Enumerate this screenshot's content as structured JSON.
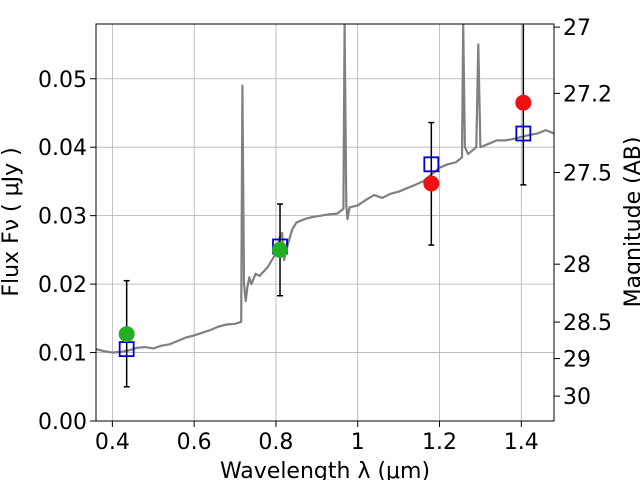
{
  "chart_data": {
    "type": "scatter",
    "xlabel": "Wavelength  λ (μm)",
    "ylabel": "Flux  Fν  ( μJy )",
    "y2label": "Magnitude (AB)",
    "xlim": [
      0.36,
      1.48
    ],
    "ylim": [
      0.0,
      0.058
    ],
    "grid": true,
    "x_ticks": [
      0.4,
      0.6,
      0.8,
      1.0,
      1.2,
      1.4
    ],
    "x_tick_labels": [
      "0.4",
      "0.6",
      "0.8",
      "1",
      "1.2",
      "1.4"
    ],
    "y_ticks": [
      0.0,
      0.01,
      0.02,
      0.03,
      0.04,
      0.05
    ],
    "y_tick_labels": [
      "0.00",
      "0.01",
      "0.02",
      "0.03",
      "0.04",
      "0.05"
    ],
    "mag_ticks": [
      27,
      27.2,
      27.5,
      28,
      28.5,
      29,
      30
    ],
    "mag_tick_labels": [
      "27",
      "27.2",
      "27.5",
      "28",
      "28.5",
      "29",
      "30"
    ],
    "series": [
      {
        "kind": "spectrum",
        "color": "#808080",
        "x": [
          0.36,
          0.38,
          0.4,
          0.42,
          0.44,
          0.46,
          0.48,
          0.5,
          0.52,
          0.54,
          0.56,
          0.58,
          0.6,
          0.62,
          0.64,
          0.66,
          0.68,
          0.7,
          0.715,
          0.718,
          0.722,
          0.726,
          0.73,
          0.735,
          0.74,
          0.75,
          0.76,
          0.78,
          0.8,
          0.81,
          0.815,
          0.82,
          0.83,
          0.84,
          0.85,
          0.87,
          0.89,
          0.91,
          0.93,
          0.95,
          0.965,
          0.968,
          0.972,
          0.975,
          0.98,
          1.0,
          1.02,
          1.04,
          1.06,
          1.08,
          1.1,
          1.12,
          1.14,
          1.16,
          1.18,
          1.2,
          1.22,
          1.24,
          1.255,
          1.258,
          1.262,
          1.266,
          1.27,
          1.28,
          1.29,
          1.295,
          1.3,
          1.32,
          1.34,
          1.36,
          1.38,
          1.4,
          1.42,
          1.44,
          1.46,
          1.48
        ],
        "y": [
          0.0105,
          0.0102,
          0.01,
          0.0101,
          0.0103,
          0.0107,
          0.0108,
          0.0106,
          0.011,
          0.0112,
          0.0117,
          0.0122,
          0.0125,
          0.0129,
          0.0133,
          0.0138,
          0.0141,
          0.0142,
          0.0145,
          0.049,
          0.02,
          0.0175,
          0.0195,
          0.021,
          0.02,
          0.0215,
          0.0212,
          0.0225,
          0.0245,
          0.027,
          0.0275,
          0.0235,
          0.026,
          0.028,
          0.029,
          0.0295,
          0.0298,
          0.03,
          0.0302,
          0.0303,
          0.031,
          0.058,
          0.0315,
          0.0295,
          0.0312,
          0.0315,
          0.0323,
          0.033,
          0.0326,
          0.0332,
          0.0335,
          0.034,
          0.0345,
          0.035,
          0.036,
          0.037,
          0.0375,
          0.0378,
          0.0385,
          0.058,
          0.04,
          0.0395,
          0.039,
          0.0395,
          0.04,
          0.055,
          0.04,
          0.0405,
          0.041,
          0.041,
          0.0412,
          0.0415,
          0.0418,
          0.042,
          0.0425,
          0.042
        ]
      },
      {
        "kind": "model-photometry",
        "marker": "open-square",
        "color": "#0000cc",
        "x": [
          0.435,
          0.81,
          1.18,
          1.405
        ],
        "y": [
          0.0105,
          0.0255,
          0.0375,
          0.042
        ]
      },
      {
        "kind": "observed-green",
        "marker": "filled-circle",
        "color": "#22b022",
        "x": [
          0.435,
          0.81
        ],
        "y": [
          0.0127,
          0.025
        ]
      },
      {
        "kind": "observed-red",
        "marker": "filled-circle",
        "color": "#ee1111",
        "x": [
          1.18,
          1.405
        ],
        "y": [
          0.0347,
          0.0465
        ]
      },
      {
        "kind": "error-bars",
        "color": "#000000",
        "x": [
          0.435,
          0.81,
          1.18,
          1.405
        ],
        "ylow": [
          0.005,
          0.0183,
          0.0257,
          0.0345
        ],
        "yhigh": [
          0.0205,
          0.0317,
          0.0436,
          0.06
        ]
      }
    ]
  }
}
